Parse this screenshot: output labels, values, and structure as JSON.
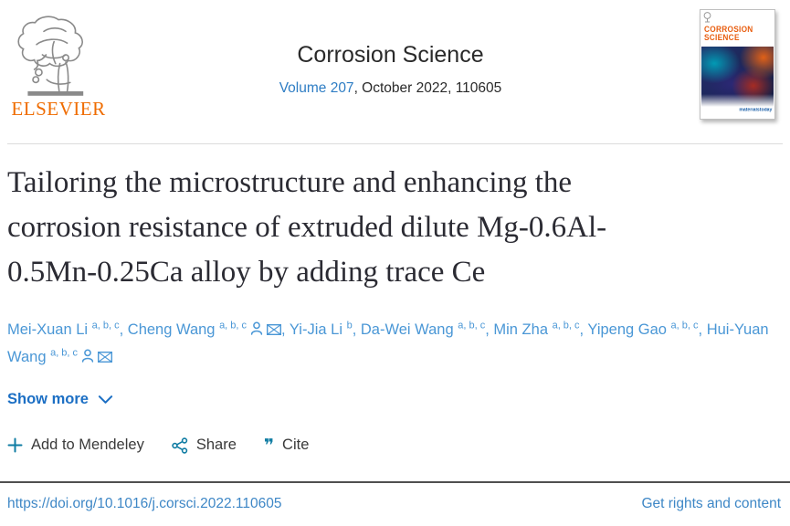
{
  "journal": {
    "publisher_wordmark": "ELSEVIER",
    "name": "Corrosion Science",
    "volume_link": "Volume 207",
    "issue_rest": ", October 2022, 110605",
    "cover": {
      "title_line1": "CORROSION",
      "title_line2": "SCIENCE",
      "brand": "materialstoday"
    }
  },
  "article": {
    "title_lines": [
      "Tailoring the microstructure and enhancing the",
      "corrosion resistance of extruded dilute Mg-0.6Al-",
      "0.5Mn-0.25Ca alloy by adding trace Ce"
    ]
  },
  "authors": {
    "separator": ", ",
    "list": [
      {
        "name": "Mei-Xuan Li",
        "sups": "a, b, c",
        "corresponding": false,
        "email": false
      },
      {
        "name": "Cheng Wang",
        "sups": "a, b, c",
        "corresponding": true,
        "email": true
      },
      {
        "name": "Yi-Jia Li",
        "sups": "b",
        "corresponding": false,
        "email": false
      },
      {
        "name": "Da-Wei Wang",
        "sups": "a, b, c",
        "corresponding": false,
        "email": false
      },
      {
        "name": "Min Zha",
        "sups": "a, b, c",
        "corresponding": false,
        "email": false
      },
      {
        "name": "Yipeng Gao",
        "sups": "a, b, c",
        "corresponding": false,
        "email": false
      },
      {
        "name": "Hui-Yuan Wang",
        "sups": "a, b, c",
        "corresponding": true,
        "email": true
      }
    ],
    "show_more_label": "Show more"
  },
  "actions": {
    "mendeley_label": "Add to Mendeley",
    "share_label": "Share",
    "cite_label": "Cite",
    "cite_glyph": "❞"
  },
  "footer": {
    "doi": "https://doi.org/10.1016/j.corsci.2022.110605",
    "rights_label": "Get rights and content"
  },
  "colors": {
    "elsevier_orange": "#EF6C00",
    "link_blue": "#2E7DC4",
    "author_blue": "#4A97D6",
    "icon_teal": "#0F7CA3",
    "title_color": "#2B2B33",
    "cover_orange": "#E85D0F",
    "divider_dark": "#4f4f4f"
  }
}
